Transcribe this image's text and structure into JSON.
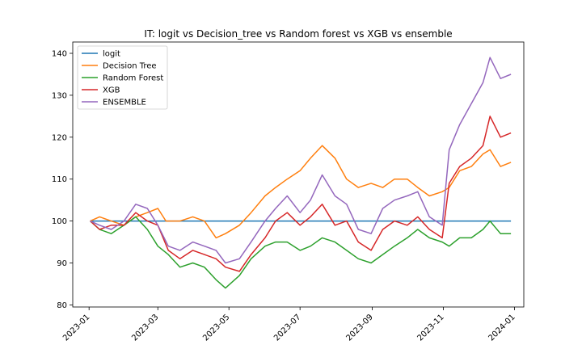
{
  "chart_data": {
    "type": "line",
    "title": "IT: logit vs Decision_tree vs Random forest vs XGB vs ensemble",
    "xlabel": "",
    "ylabel": "",
    "x_range": [
      "2022-12-15",
      "2024-01-15"
    ],
    "xlim": [
      "2022-12-18",
      "2024-01-09"
    ],
    "ylim": [
      79.5,
      142.7
    ],
    "x_ticks": [
      "2023-01",
      "2023-03",
      "2023-05",
      "2023-07",
      "2023-09",
      "2023-11",
      "2024-01"
    ],
    "y_ticks": [
      80,
      90,
      100,
      110,
      120,
      130,
      140
    ],
    "grid": false,
    "legend_position": "top-left",
    "series": [
      {
        "name": "logit",
        "color": "#1f77b4",
        "x": [
          "2023-01-02",
          "2023-12-29"
        ],
        "y": [
          100,
          100
        ]
      },
      {
        "name": "Decision Tree",
        "color": "#ff7f0e",
        "x": [
          "2023-01-02",
          "2023-01-10",
          "2023-01-20",
          "2023-01-31",
          "2023-02-10",
          "2023-02-20",
          "2023-03-01",
          "2023-03-08",
          "2023-03-20",
          "2023-03-31",
          "2023-04-10",
          "2023-04-20",
          "2023-04-28",
          "2023-05-10",
          "2023-05-20",
          "2023-06-01",
          "2023-06-10",
          "2023-06-20",
          "2023-07-01",
          "2023-07-10",
          "2023-07-20",
          "2023-07-31",
          "2023-08-10",
          "2023-08-20",
          "2023-08-31",
          "2023-09-10",
          "2023-09-20",
          "2023-10-01",
          "2023-10-10",
          "2023-10-20",
          "2023-10-31",
          "2023-11-06",
          "2023-11-15",
          "2023-11-25",
          "2023-12-05",
          "2023-12-11",
          "2023-12-20",
          "2023-12-29"
        ],
        "y": [
          100,
          101,
          100,
          99,
          101,
          102,
          103,
          100,
          100,
          101,
          100,
          96,
          97,
          99,
          102,
          106,
          108,
          110,
          112,
          115,
          118,
          115,
          110,
          108,
          109,
          108,
          110,
          110,
          108,
          106,
          107,
          108,
          112,
          113,
          116,
          117,
          113,
          114
        ]
      },
      {
        "name": "Random Forest",
        "color": "#2ca02c",
        "x": [
          "2023-01-02",
          "2023-01-10",
          "2023-01-20",
          "2023-01-31",
          "2023-02-10",
          "2023-02-20",
          "2023-03-01",
          "2023-03-10",
          "2023-03-20",
          "2023-03-31",
          "2023-04-10",
          "2023-04-20",
          "2023-04-28",
          "2023-05-10",
          "2023-05-20",
          "2023-06-01",
          "2023-06-10",
          "2023-06-20",
          "2023-07-01",
          "2023-07-10",
          "2023-07-20",
          "2023-07-31",
          "2023-08-10",
          "2023-08-20",
          "2023-08-31",
          "2023-09-10",
          "2023-09-20",
          "2023-10-01",
          "2023-10-10",
          "2023-10-20",
          "2023-10-31",
          "2023-11-06",
          "2023-11-15",
          "2023-11-25",
          "2023-12-05",
          "2023-12-11",
          "2023-12-20",
          "2023-12-29"
        ],
        "y": [
          100,
          98,
          97,
          99,
          101,
          98,
          94,
          92,
          89,
          90,
          89,
          86,
          84,
          87,
          91,
          94,
          95,
          95,
          93,
          94,
          96,
          95,
          93,
          91,
          90,
          92,
          94,
          96,
          98,
          96,
          95,
          94,
          96,
          96,
          98,
          100,
          97,
          97
        ]
      },
      {
        "name": "XGB",
        "color": "#d62728",
        "x": [
          "2023-01-02",
          "2023-01-10",
          "2023-01-20",
          "2023-01-31",
          "2023-02-10",
          "2023-02-20",
          "2023-03-01",
          "2023-03-10",
          "2023-03-20",
          "2023-03-31",
          "2023-04-10",
          "2023-04-20",
          "2023-04-28",
          "2023-05-10",
          "2023-05-20",
          "2023-06-01",
          "2023-06-10",
          "2023-06-20",
          "2023-07-01",
          "2023-07-10",
          "2023-07-20",
          "2023-07-31",
          "2023-08-10",
          "2023-08-20",
          "2023-08-31",
          "2023-09-10",
          "2023-09-20",
          "2023-10-01",
          "2023-10-10",
          "2023-10-20",
          "2023-10-31",
          "2023-11-06",
          "2023-11-15",
          "2023-11-25",
          "2023-12-05",
          "2023-12-11",
          "2023-12-20",
          "2023-12-29"
        ],
        "y": [
          100,
          98,
          99,
          99,
          102,
          100,
          99,
          93,
          91,
          93,
          92,
          91,
          89,
          88,
          92,
          96,
          100,
          102,
          99,
          101,
          104,
          99,
          100,
          95,
          93,
          98,
          100,
          99,
          101,
          98,
          96,
          109,
          113,
          115,
          118,
          125,
          120,
          121
        ]
      },
      {
        "name": "ENSEMBLE",
        "color": "#9467bd",
        "x": [
          "2023-01-02",
          "2023-01-10",
          "2023-01-20",
          "2023-01-31",
          "2023-02-10",
          "2023-02-20",
          "2023-03-01",
          "2023-03-10",
          "2023-03-20",
          "2023-03-31",
          "2023-04-10",
          "2023-04-20",
          "2023-04-28",
          "2023-05-10",
          "2023-05-20",
          "2023-06-01",
          "2023-06-10",
          "2023-06-20",
          "2023-07-01",
          "2023-07-10",
          "2023-07-20",
          "2023-07-31",
          "2023-08-10",
          "2023-08-20",
          "2023-08-31",
          "2023-09-10",
          "2023-09-20",
          "2023-10-01",
          "2023-10-10",
          "2023-10-20",
          "2023-10-31",
          "2023-11-06",
          "2023-11-15",
          "2023-11-25",
          "2023-12-05",
          "2023-12-11",
          "2023-12-20",
          "2023-12-29"
        ],
        "y": [
          100,
          99,
          98,
          100,
          104,
          103,
          99,
          94,
          93,
          95,
          94,
          93,
          90,
          91,
          95,
          100,
          103,
          106,
          102,
          105,
          111,
          106,
          104,
          98,
          97,
          103,
          105,
          106,
          107,
          101,
          99,
          117,
          123,
          128,
          133,
          139,
          134,
          135
        ]
      }
    ]
  }
}
